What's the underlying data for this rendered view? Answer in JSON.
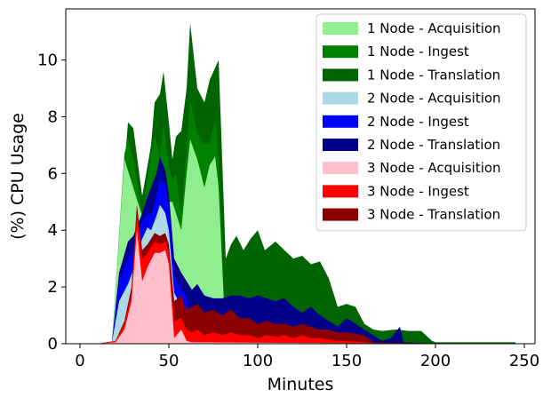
{
  "chart_data": {
    "type": "area",
    "title": "",
    "xlabel": "Minutes",
    "ylabel": "(%) CPU Usage",
    "xlim": [
      -8,
      256
    ],
    "ylim": [
      0,
      11.8
    ],
    "xticks": [
      0,
      50,
      100,
      150,
      200,
      250
    ],
    "yticks": [
      0,
      2,
      4,
      6,
      8,
      10
    ],
    "legend_position": "top-right",
    "grid": false,
    "layers": [
      {
        "name": "1 Node - Translation",
        "color": "#006400",
        "points": [
          [
            0,
            0
          ],
          [
            10,
            0
          ],
          [
            18,
            0.05
          ],
          [
            25,
            6.2
          ],
          [
            27,
            7.8
          ],
          [
            30,
            7.6
          ],
          [
            35,
            5.2
          ],
          [
            40,
            7
          ],
          [
            42,
            8.5
          ],
          [
            45,
            8.8
          ],
          [
            47,
            9.6
          ],
          [
            50,
            7.8
          ],
          [
            52,
            6.5
          ],
          [
            54,
            7.3
          ],
          [
            57,
            7.5
          ],
          [
            60,
            9
          ],
          [
            62,
            11.3
          ],
          [
            66,
            9
          ],
          [
            70,
            8.5
          ],
          [
            73,
            9.3
          ],
          [
            78,
            10
          ],
          [
            82,
            3
          ],
          [
            85,
            3.5
          ],
          [
            88,
            3.8
          ],
          [
            92,
            3.3
          ],
          [
            96,
            3.7
          ],
          [
            100,
            4
          ],
          [
            104,
            3.3
          ],
          [
            110,
            3.6
          ],
          [
            115,
            3.3
          ],
          [
            120,
            3
          ],
          [
            125,
            3.1
          ],
          [
            130,
            2.8
          ],
          [
            135,
            2.9
          ],
          [
            140,
            2.3
          ],
          [
            145,
            1.3
          ],
          [
            150,
            1.4
          ],
          [
            155,
            1.3
          ],
          [
            160,
            0.7
          ],
          [
            165,
            0.5
          ],
          [
            170,
            0.45
          ],
          [
            178,
            0.5
          ],
          [
            185,
            0.45
          ],
          [
            192,
            0.45
          ],
          [
            198,
            0.1
          ],
          [
            200,
            0.05
          ],
          [
            245,
            0.05
          ]
        ]
      },
      {
        "name": "1 Node - Ingest",
        "color": "#008000",
        "points": [
          [
            0,
            0
          ],
          [
            10,
            0
          ],
          [
            18,
            0.05
          ],
          [
            25,
            6.7
          ],
          [
            27,
            7.2
          ],
          [
            30,
            6.5
          ],
          [
            35,
            4.6
          ],
          [
            40,
            6.7
          ],
          [
            42,
            7.3
          ],
          [
            45,
            6.6
          ],
          [
            47,
            7.7
          ],
          [
            50,
            6.2
          ],
          [
            52,
            5.8
          ],
          [
            54,
            6
          ],
          [
            57,
            4.6
          ],
          [
            60,
            6.8
          ],
          [
            62,
            8.6
          ],
          [
            66,
            7.4
          ],
          [
            70,
            7
          ],
          [
            73,
            7.1
          ],
          [
            76,
            7.9
          ],
          [
            78,
            6.5
          ],
          [
            82,
            0.05
          ],
          [
            245,
            0
          ]
        ]
      },
      {
        "name": "1 Node - Acquisition",
        "color": "#90EE90",
        "points": [
          [
            0,
            0
          ],
          [
            10,
            0
          ],
          [
            18,
            0.05
          ],
          [
            25,
            6.5
          ],
          [
            30,
            5.5
          ],
          [
            35,
            4.5
          ],
          [
            40,
            4.5
          ],
          [
            45,
            5.5
          ],
          [
            50,
            5
          ],
          [
            52,
            5
          ],
          [
            57,
            4
          ],
          [
            60,
            6
          ],
          [
            62,
            7.2
          ],
          [
            66,
            6.5
          ],
          [
            70,
            5.5
          ],
          [
            73,
            6.3
          ],
          [
            76,
            6.6
          ],
          [
            78,
            5.5
          ],
          [
            82,
            0.05
          ],
          [
            245,
            0
          ]
        ]
      },
      {
        "name": "2 Node - Translation",
        "color": "#00008B",
        "points": [
          [
            0,
            0
          ],
          [
            10,
            0
          ],
          [
            18,
            0.05
          ],
          [
            22,
            2.5
          ],
          [
            27,
            3.6
          ],
          [
            30,
            3.8
          ],
          [
            35,
            4.6
          ],
          [
            38,
            5.2
          ],
          [
            40,
            5.5
          ],
          [
            43,
            6
          ],
          [
            45,
            6.6
          ],
          [
            48,
            6.1
          ],
          [
            50,
            5.3
          ],
          [
            53,
            3
          ],
          [
            57,
            2.5
          ],
          [
            60,
            2.2
          ],
          [
            63,
            1.9
          ],
          [
            66,
            2.1
          ],
          [
            70,
            1.7
          ],
          [
            75,
            1.6
          ],
          [
            80,
            1.6
          ],
          [
            85,
            1.7
          ],
          [
            90,
            1.7
          ],
          [
            95,
            1.6
          ],
          [
            100,
            1.7
          ],
          [
            105,
            1.6
          ],
          [
            110,
            1.5
          ],
          [
            115,
            1.6
          ],
          [
            120,
            1.3
          ],
          [
            125,
            1.1
          ],
          [
            130,
            1.3
          ],
          [
            135,
            1
          ],
          [
            140,
            0.8
          ],
          [
            145,
            0.6
          ],
          [
            150,
            0.9
          ],
          [
            155,
            0.7
          ],
          [
            160,
            0.5
          ],
          [
            165,
            0.3
          ],
          [
            170,
            0.1
          ],
          [
            175,
            0.2
          ],
          [
            180,
            0.6
          ],
          [
            182,
            0.05
          ],
          [
            200,
            0
          ]
        ]
      },
      {
        "name": "2 Node - Ingest",
        "color": "#0000FF",
        "points": [
          [
            0,
            0
          ],
          [
            10,
            0
          ],
          [
            18,
            0.05
          ],
          [
            22,
            2.2
          ],
          [
            27,
            3
          ],
          [
            30,
            3.3
          ],
          [
            35,
            4.3
          ],
          [
            38,
            4.6
          ],
          [
            40,
            4.5
          ],
          [
            43,
            5.2
          ],
          [
            45,
            5.8
          ],
          [
            48,
            5.6
          ],
          [
            50,
            4.8
          ],
          [
            53,
            2.4
          ],
          [
            57,
            1.9
          ],
          [
            60,
            1.7
          ],
          [
            63,
            0.05
          ],
          [
            200,
            0
          ]
        ]
      },
      {
        "name": "2 Node - Acquisition",
        "color": "#ADD8E6",
        "points": [
          [
            0,
            0
          ],
          [
            10,
            0
          ],
          [
            18,
            0.05
          ],
          [
            22,
            1.5
          ],
          [
            27,
            2.1
          ],
          [
            30,
            2.6
          ],
          [
            35,
            3.7
          ],
          [
            38,
            4.1
          ],
          [
            40,
            4
          ],
          [
            43,
            4.5
          ],
          [
            45,
            4.9
          ],
          [
            48,
            4.6
          ],
          [
            50,
            4
          ],
          [
            53,
            1.8
          ],
          [
            57,
            1.3
          ],
          [
            60,
            1
          ],
          [
            63,
            0.05
          ],
          [
            200,
            0
          ]
        ]
      },
      {
        "name": "3 Node - Translation",
        "color": "#8B0000",
        "points": [
          [
            0,
            0
          ],
          [
            10,
            0
          ],
          [
            20,
            0.1
          ],
          [
            25,
            0.8
          ],
          [
            29,
            2
          ],
          [
            32,
            4.9
          ],
          [
            35,
            3.3
          ],
          [
            38,
            3.5
          ],
          [
            42,
            3.9
          ],
          [
            45,
            3.8
          ],
          [
            48,
            3.9
          ],
          [
            50,
            3.5
          ],
          [
            53,
            1.5
          ],
          [
            57,
            1.7
          ],
          [
            60,
            1.2
          ],
          [
            63,
            1.3
          ],
          [
            66,
            1.4
          ],
          [
            70,
            1.1
          ],
          [
            75,
            1.2
          ],
          [
            80,
            1
          ],
          [
            85,
            1.2
          ],
          [
            90,
            0.9
          ],
          [
            95,
            0.9
          ],
          [
            100,
            0.7
          ],
          [
            105,
            0.8
          ],
          [
            110,
            0.7
          ],
          [
            115,
            0.7
          ],
          [
            120,
            0.6
          ],
          [
            125,
            0.7
          ],
          [
            130,
            0.6
          ],
          [
            135,
            0.5
          ],
          [
            140,
            0.5
          ],
          [
            145,
            0.4
          ],
          [
            150,
            0.4
          ],
          [
            160,
            0.3
          ],
          [
            165,
            0.05
          ],
          [
            200,
            0
          ]
        ]
      },
      {
        "name": "3 Node - Ingest",
        "color": "#FF0000",
        "points": [
          [
            0,
            0
          ],
          [
            10,
            0
          ],
          [
            20,
            0.1
          ],
          [
            25,
            0.7
          ],
          [
            29,
            1.8
          ],
          [
            32,
            4.6
          ],
          [
            35,
            3
          ],
          [
            38,
            3.2
          ],
          [
            42,
            3.6
          ],
          [
            45,
            3.5
          ],
          [
            48,
            3.6
          ],
          [
            50,
            3.2
          ],
          [
            53,
            0.8
          ],
          [
            57,
            0.9
          ],
          [
            60,
            0.5
          ],
          [
            63,
            0.4
          ],
          [
            66,
            0.5
          ],
          [
            70,
            0.3
          ],
          [
            75,
            0.4
          ],
          [
            80,
            0.3
          ],
          [
            85,
            0.4
          ],
          [
            90,
            0.3
          ],
          [
            95,
            0.3
          ],
          [
            100,
            0.2
          ],
          [
            105,
            0.3
          ],
          [
            110,
            0.25
          ],
          [
            115,
            0.3
          ],
          [
            120,
            0.2
          ],
          [
            125,
            0.3
          ],
          [
            130,
            0.2
          ],
          [
            135,
            0.2
          ],
          [
            140,
            0.15
          ],
          [
            145,
            0.1
          ],
          [
            150,
            0.1
          ],
          [
            160,
            0.05
          ],
          [
            165,
            0.02
          ],
          [
            200,
            0
          ]
        ]
      },
      {
        "name": "3 Node - Acquisition",
        "color": "#FFC0CB",
        "points": [
          [
            0,
            0
          ],
          [
            10,
            0
          ],
          [
            20,
            0.05
          ],
          [
            25,
            0.5
          ],
          [
            29,
            1.5
          ],
          [
            32,
            4
          ],
          [
            35,
            2.2
          ],
          [
            38,
            2.7
          ],
          [
            42,
            3.2
          ],
          [
            45,
            3.2
          ],
          [
            48,
            3.3
          ],
          [
            50,
            2.8
          ],
          [
            53,
            0.2
          ],
          [
            57,
            0.5
          ],
          [
            60,
            0.1
          ],
          [
            63,
            0.05
          ],
          [
            200,
            0
          ]
        ]
      }
    ],
    "legend_entries": [
      {
        "label": "1 Node - Acquisition",
        "color": "#90EE90"
      },
      {
        "label": "1 Node - Ingest",
        "color": "#008000"
      },
      {
        "label": "1 Node - Translation",
        "color": "#006400"
      },
      {
        "label": "2 Node - Acquisition",
        "color": "#ADD8E6"
      },
      {
        "label": "2 Node - Ingest",
        "color": "#0000FF"
      },
      {
        "label": "2 Node - Translation",
        "color": "#00008B"
      },
      {
        "label": "3 Node - Acquisition",
        "color": "#FFC0CB"
      },
      {
        "label": "3 Node - Ingest",
        "color": "#FF0000"
      },
      {
        "label": "3 Node - Translation",
        "color": "#8B0000"
      }
    ]
  }
}
